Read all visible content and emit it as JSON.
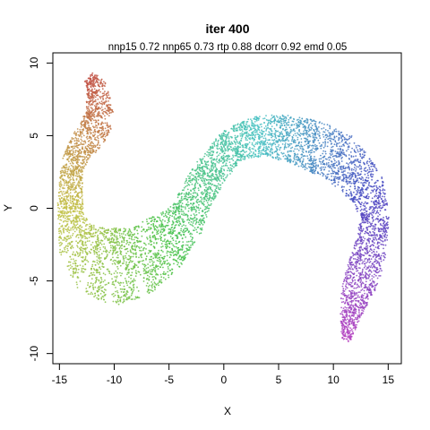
{
  "chart_data": {
    "type": "scatter",
    "title": "iter 400",
    "subtitle": "nnp15 0.72 nnp65 0.73 rtp 0.88 dcorr 0.92 emd 0.05",
    "xlabel": "X",
    "ylabel": "Y",
    "xlim": [
      -15.6,
      16.2
    ],
    "ylim": [
      -10.7,
      10.7
    ],
    "x_ticks": [
      -15,
      -10,
      -5,
      0,
      5,
      10,
      15
    ],
    "y_ticks": [
      -10,
      -5,
      0,
      5,
      10
    ],
    "x_tick_labels": [
      "-15",
      "-10",
      "-5",
      "0",
      "5",
      "10",
      "15"
    ],
    "y_tick_labels": [
      "-10",
      "-5",
      "0",
      "5",
      "10"
    ],
    "grid": false,
    "legend": "none",
    "point_count": 7000,
    "coloring": "rainbow gradient along the curve (red -> orange -> yellow -> green -> cyan -> blue -> magenta)",
    "curve": {
      "centerline": [
        [
          -12.3,
          9.0
        ],
        [
          -11.5,
          8.0
        ],
        [
          -11.3,
          6.3
        ],
        [
          -12.0,
          5.2
        ],
        [
          -13.0,
          4.3
        ],
        [
          -13.8,
          3.0
        ],
        [
          -14.0,
          1.2
        ],
        [
          -14.0,
          -0.8
        ],
        [
          -13.3,
          -2.5
        ],
        [
          -12.0,
          -3.5
        ],
        [
          -10.2,
          -4.0
        ],
        [
          -8.0,
          -3.8
        ],
        [
          -5.5,
          -2.5
        ],
        [
          -3.5,
          -1.0
        ],
        [
          -2.5,
          0.8
        ],
        [
          -1.0,
          2.8
        ],
        [
          1.0,
          4.5
        ],
        [
          3.5,
          5.0
        ],
        [
          6.0,
          4.8
        ],
        [
          8.5,
          4.2
        ],
        [
          11.0,
          3.2
        ],
        [
          13.0,
          1.5
        ],
        [
          13.8,
          -0.5
        ],
        [
          13.5,
          -2.5
        ],
        [
          12.8,
          -4.3
        ],
        [
          12.0,
          -6.0
        ],
        [
          11.5,
          -7.5
        ],
        [
          11.2,
          -9.0
        ]
      ],
      "half_width": [
        0.5,
        1.0,
        1.3,
        1.3,
        1.1,
        1.0,
        1.1,
        1.2,
        1.8,
        2.4,
        2.7,
        2.5,
        2.2,
        1.6,
        1.5,
        1.4,
        1.3,
        1.4,
        1.6,
        1.8,
        1.9,
        1.6,
        1.3,
        1.4,
        1.6,
        1.3,
        0.9,
        0.4
      ]
    }
  }
}
